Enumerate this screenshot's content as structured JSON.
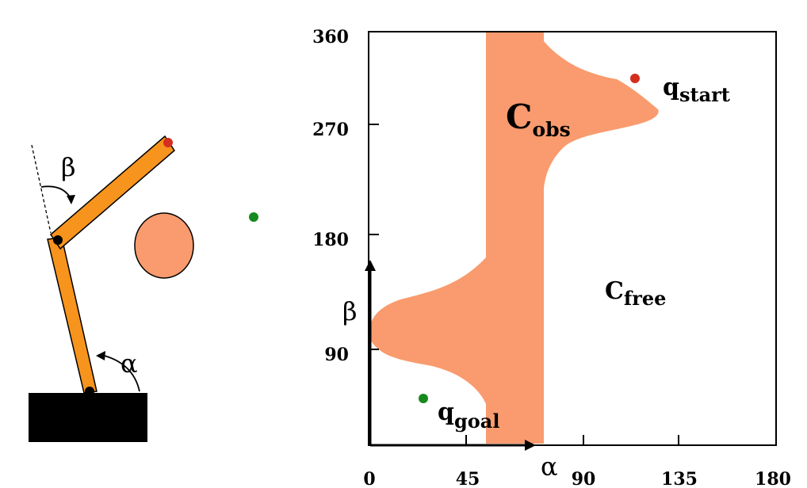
{
  "colors": {
    "link": "#F7941D",
    "obstacle": "#F99B6E",
    "base": "#000000",
    "start_point": "#D42E1E",
    "goal_point": "#168A1E"
  },
  "robot": {
    "beta_label": "β",
    "alpha_label": "α"
  },
  "cspace": {
    "y_ticks": [
      "360",
      "270",
      "180",
      "90"
    ],
    "x_ticks": [
      "0",
      "45",
      "90",
      "135",
      "180"
    ],
    "x_axis_symbol": "α",
    "y_axis_symbol": "β",
    "cobs_main": "C",
    "cobs_sub": "obs",
    "cfree_main": "C",
    "cfree_sub": "free",
    "qstart_main": "q",
    "qstart_sub": "start",
    "qgoal_main": "q",
    "qgoal_sub": "goal"
  }
}
